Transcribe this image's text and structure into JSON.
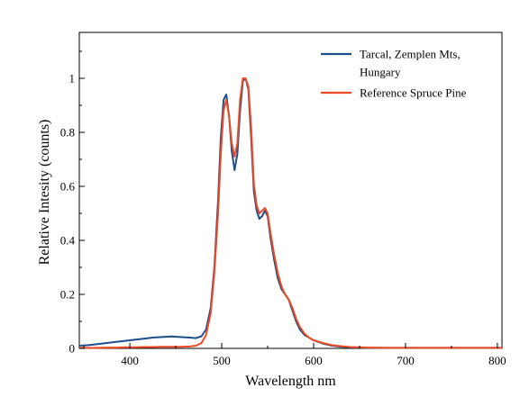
{
  "chart_data": {
    "type": "line",
    "title": "",
    "xlabel": "Wavelength nm",
    "ylabel": "Relative Intesity (counts)",
    "xlim": [
      345,
      805
    ],
    "ylim": [
      0,
      1.17
    ],
    "x_ticks": [
      400,
      500,
      600,
      700,
      800
    ],
    "x_tick_labels": [
      "400",
      "500",
      "600",
      "700",
      "800"
    ],
    "y_ticks": [
      0,
      0.2,
      0.4,
      0.6,
      0.8,
      1
    ],
    "y_tick_labels": [
      "0",
      "0.2",
      "0.4",
      "0.6",
      "0.8",
      "1"
    ],
    "grid": false,
    "legend_position": "top-right",
    "series": [
      {
        "name": "Tarcal, Zemplen Mts, Hungary",
        "legend_lines": [
          "Tarcal, Zemplen Mts,",
          "Hungary"
        ],
        "color": "#1f4e8c",
        "x": [
          345,
          355,
          365,
          375,
          385,
          395,
          405,
          415,
          425,
          435,
          445,
          455,
          465,
          472,
          478,
          483,
          488,
          492,
          496,
          499,
          502,
          505,
          508,
          511,
          514,
          517,
          520,
          523,
          526,
          529,
          532,
          535,
          538,
          541,
          544,
          547,
          550,
          553,
          557,
          561,
          565,
          569,
          573,
          577,
          581,
          585,
          590,
          595,
          600,
          610,
          620,
          630,
          640,
          650,
          660,
          680,
          700,
          720,
          740,
          760,
          780,
          805
        ],
        "y": [
          0.01,
          0.012,
          0.016,
          0.02,
          0.024,
          0.028,
          0.032,
          0.036,
          0.04,
          0.042,
          0.044,
          0.042,
          0.04,
          0.038,
          0.045,
          0.07,
          0.15,
          0.3,
          0.55,
          0.78,
          0.92,
          0.94,
          0.86,
          0.73,
          0.66,
          0.72,
          0.88,
          0.99,
          1.0,
          0.96,
          0.78,
          0.58,
          0.51,
          0.48,
          0.49,
          0.51,
          0.49,
          0.41,
          0.33,
          0.26,
          0.22,
          0.2,
          0.18,
          0.14,
          0.1,
          0.07,
          0.05,
          0.04,
          0.03,
          0.018,
          0.01,
          0.006,
          0.004,
          0.003,
          0.002,
          0.002,
          0.002,
          0.002,
          0.002,
          0.002,
          0.002,
          0.002
        ]
      },
      {
        "name": "Reference Spruce Pine",
        "legend_lines": [
          "Reference Spruce Pine"
        ],
        "color": "#f04a23",
        "x": [
          345,
          355,
          365,
          375,
          385,
          395,
          405,
          415,
          425,
          435,
          445,
          455,
          465,
          472,
          478,
          483,
          488,
          492,
          496,
          499,
          502,
          505,
          508,
          511,
          514,
          517,
          520,
          523,
          526,
          529,
          532,
          535,
          538,
          541,
          544,
          547,
          550,
          553,
          557,
          561,
          565,
          569,
          573,
          577,
          581,
          585,
          590,
          595,
          600,
          610,
          620,
          630,
          640,
          650,
          660,
          680,
          700,
          720,
          740,
          760,
          780,
          805
        ],
        "y": [
          0.002,
          0.002,
          0.002,
          0.003,
          0.003,
          0.004,
          0.004,
          0.005,
          0.005,
          0.006,
          0.006,
          0.006,
          0.007,
          0.01,
          0.02,
          0.05,
          0.13,
          0.28,
          0.5,
          0.72,
          0.88,
          0.92,
          0.86,
          0.76,
          0.71,
          0.76,
          0.92,
          1.0,
          1.0,
          0.97,
          0.82,
          0.61,
          0.53,
          0.5,
          0.51,
          0.52,
          0.5,
          0.43,
          0.35,
          0.28,
          0.23,
          0.2,
          0.18,
          0.15,
          0.11,
          0.08,
          0.055,
          0.04,
          0.03,
          0.02,
          0.012,
          0.008,
          0.005,
          0.004,
          0.003,
          0.002,
          0.002,
          0.002,
          0.002,
          0.002,
          0.002,
          0.002
        ]
      }
    ]
  }
}
